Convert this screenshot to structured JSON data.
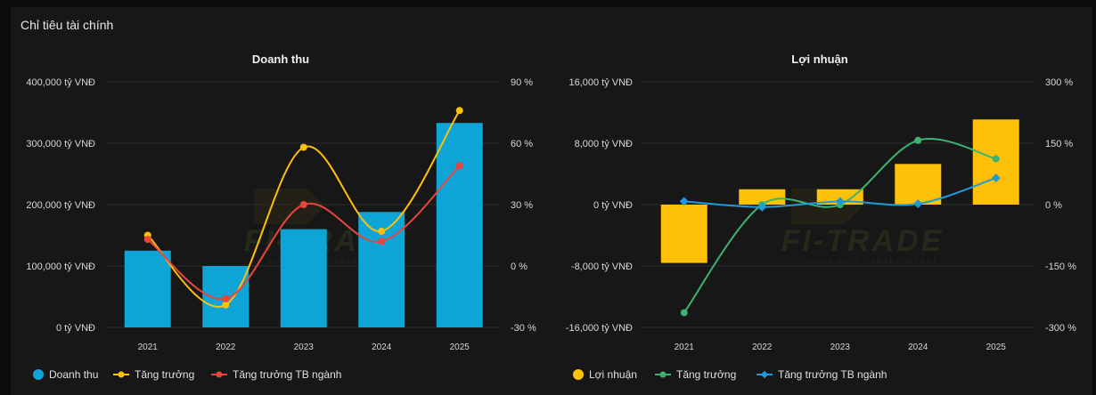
{
  "panel": {
    "title": "Chỉ tiêu tài chính"
  },
  "watermark": {
    "brand": "FI-TRADE",
    "tagline": "VALUE DATA - SMART INVEST"
  },
  "chart_data": [
    {
      "type": "bar",
      "title": "Doanh thu",
      "categories": [
        "2021",
        "2022",
        "2023",
        "2024",
        "2025"
      ],
      "y_left": {
        "ticks": [
          400000,
          300000,
          200000,
          100000,
          0
        ],
        "tick_labels": [
          "400,000 tỷ VNĐ",
          "300,000 tỷ VNĐ",
          "200,000 tỷ VNĐ",
          "100,000 tỷ VNĐ",
          "0 tỷ VNĐ"
        ],
        "range": [
          0,
          400000
        ]
      },
      "y_right": {
        "ticks": [
          90,
          60,
          30,
          0,
          -30
        ],
        "tick_labels": [
          "90 %",
          "60 %",
          "30 %",
          "0 %",
          "-30 %"
        ],
        "range": [
          -30,
          90
        ]
      },
      "series": [
        {
          "name": "Doanh thu",
          "kind": "bar",
          "axis": "left",
          "color": "#0ea5d6",
          "values": [
            125000,
            100000,
            160000,
            188000,
            333000
          ]
        },
        {
          "name": "Tăng trưởng",
          "kind": "line",
          "axis": "right",
          "color": "#ffc107",
          "values": [
            15,
            -19,
            58,
            17,
            76
          ]
        },
        {
          "name": "Tăng trưởng TB ngành",
          "kind": "line",
          "axis": "right",
          "color": "#e8453c",
          "values": [
            13,
            -16,
            30,
            12,
            49
          ]
        }
      ],
      "legend": "bottom-left"
    },
    {
      "type": "bar",
      "title": "Lợi nhuận",
      "categories": [
        "2021",
        "2022",
        "2023",
        "2024",
        "2025"
      ],
      "y_left": {
        "ticks": [
          16000,
          8000,
          0,
          -8000,
          -16000
        ],
        "tick_labels": [
          "16,000 tỷ VNĐ",
          "8,000 tỷ VNĐ",
          "0 tỷ VNĐ",
          "-8,000 tỷ VNĐ",
          "-16,000 tỷ VNĐ"
        ],
        "range": [
          -16000,
          16000
        ]
      },
      "y_right": {
        "ticks": [
          300,
          150,
          0,
          -150,
          -300
        ],
        "tick_labels": [
          "300 %",
          "150 %",
          "0 %",
          "-150 %",
          "-300 %"
        ],
        "range": [
          -300,
          300
        ]
      },
      "series": [
        {
          "name": "Lợi nhuận",
          "kind": "bar",
          "axis": "left",
          "color": "#ffc107",
          "values": [
            -7600,
            2000,
            2000,
            5300,
            11100
          ]
        },
        {
          "name": "Tăng trưởng",
          "kind": "line",
          "axis": "right",
          "color": "#3cb371",
          "values": [
            -264,
            0,
            0,
            157,
            112
          ]
        },
        {
          "name": "Tăng trưởng TB ngành",
          "kind": "line",
          "axis": "right",
          "color": "#1e9bd7",
          "values": [
            8,
            -6,
            8,
            2,
            65
          ]
        }
      ],
      "legend": "bottom-left"
    }
  ]
}
